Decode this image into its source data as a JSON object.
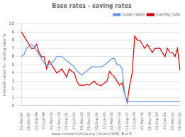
{
  "chart_data": {
    "type": "line",
    "title": "Base rates - saving rates",
    "ylabel": "Interest rates % - saving rate %",
    "source": "www.economicshelp.org | Source ONS, B of E",
    "categories": [
      "01-Mar-97",
      null,
      null,
      "01-Dec-97",
      null,
      null,
      "01-Sep-98",
      null,
      null,
      "01-Jun-99",
      null,
      null,
      "01-Mar-00",
      null,
      null,
      "01-Dec-00",
      null,
      null,
      "01-Sep-01",
      null,
      null,
      "01-Jun-02",
      null,
      null,
      "01-Mar-03",
      null,
      null,
      "01-Dec-03",
      null,
      null,
      "01-Sep-04",
      null,
      null,
      "01-Jun-05",
      null,
      null,
      "01-Mar-06",
      null,
      null,
      "01-Dec-06",
      null,
      null,
      "01-Sep-07",
      null,
      null,
      "01-Jun-08",
      null,
      null,
      "01-Mar-09",
      null,
      null,
      "01-Dec-09",
      null,
      null,
      "01-Sep-10",
      null,
      null,
      "01-Jun-11",
      null,
      null,
      "01-Mar-12",
      null,
      null,
      "01-Dec-12"
    ],
    "series": [
      {
        "name": "base rates",
        "color": "#6495ED",
        "values": [
          6.0,
          6.25,
          7.0,
          7.25,
          7.5,
          7.25,
          6.75,
          6.25,
          5.75,
          5.25,
          5.0,
          5.0,
          5.25,
          5.5,
          6.0,
          6.0,
          6.0,
          5.75,
          5.5,
          5.25,
          5.0,
          4.75,
          4.25,
          4.0,
          3.75,
          4.0,
          4.25,
          4.5,
          4.75,
          4.75,
          4.75,
          4.75,
          4.75,
          5.0,
          5.25,
          5.5,
          5.75,
          5.75,
          5.0,
          5.0,
          4.5,
          1.5,
          0.5,
          0.5,
          0.5,
          0.5,
          0.5,
          0.5,
          0.5,
          0.5,
          0.5,
          0.5,
          0.5,
          0.5,
          0.5,
          0.5,
          0.5,
          0.5,
          0.5,
          0.5,
          0.5,
          0.5,
          0.5,
          0.5
        ]
      },
      {
        "name": "saving rate",
        "color": "#CC0000",
        "values": [
          9.0,
          8.5,
          8.0,
          7.5,
          7.0,
          7.0,
          7.5,
          6.5,
          6.0,
          6.0,
          4.5,
          5.5,
          5.0,
          4.5,
          4.0,
          4.2,
          4.5,
          4.0,
          3.5,
          4.5,
          4.2,
          4.0,
          3.0,
          2.5,
          2.5,
          2.5,
          2.6,
          2.5,
          2.8,
          3.0,
          2.6,
          2.5,
          2.5,
          2.8,
          3.0,
          4.2,
          3.8,
          3.5,
          3.0,
          2.5,
          2.8,
          1.5,
          0.4,
          2.5,
          4.0,
          8.5,
          8.0,
          8.0,
          7.5,
          7.0,
          7.5,
          7.0,
          6.5,
          7.0,
          7.0,
          7.0,
          6.5,
          6.0,
          7.0,
          6.5,
          6.5,
          6.0,
          7.0,
          4.3
        ]
      }
    ],
    "ylim": [
      0,
      10
    ],
    "yticks": [
      0,
      1,
      2,
      3,
      4,
      5,
      6,
      7,
      8,
      9,
      10
    ],
    "grid": true,
    "legend": "upper right"
  }
}
